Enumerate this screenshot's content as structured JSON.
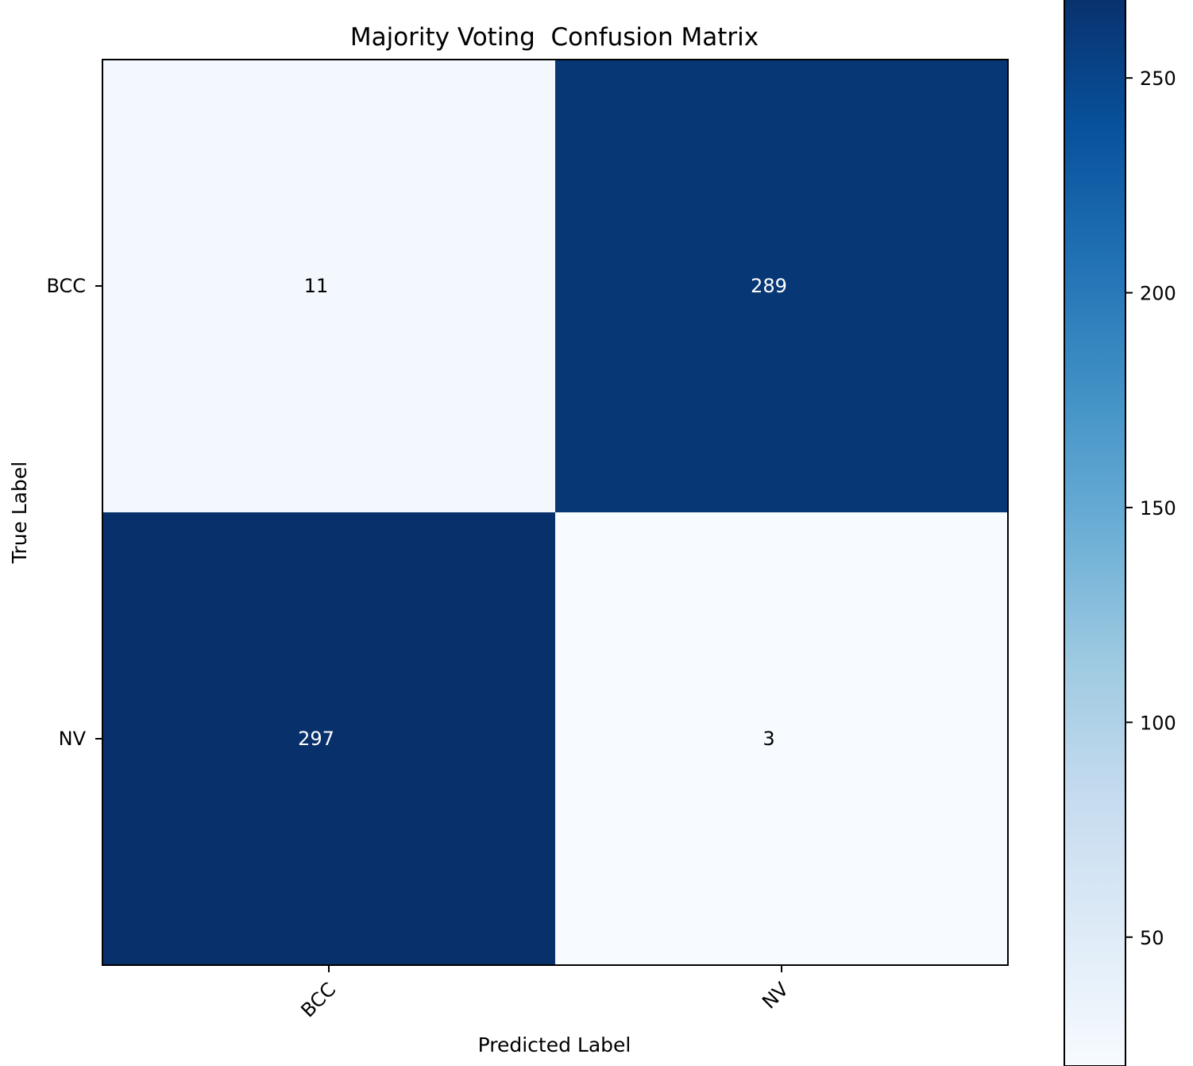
{
  "chart_data": {
    "type": "heatmap",
    "title": "Majority Voting  Confusion Matrix",
    "xlabel": "Predicted Label",
    "ylabel": "True Label",
    "x_categories": [
      "BCC",
      "NV"
    ],
    "y_categories": [
      "BCC",
      "NV"
    ],
    "matrix": [
      [
        11,
        289
      ],
      [
        297,
        3
      ]
    ],
    "colormap": "Blues",
    "colorbar": {
      "range": [
        3,
        297
      ],
      "ticks": [
        50,
        100,
        150,
        200,
        250
      ]
    },
    "grid": false,
    "legend": "colorbar-right"
  }
}
